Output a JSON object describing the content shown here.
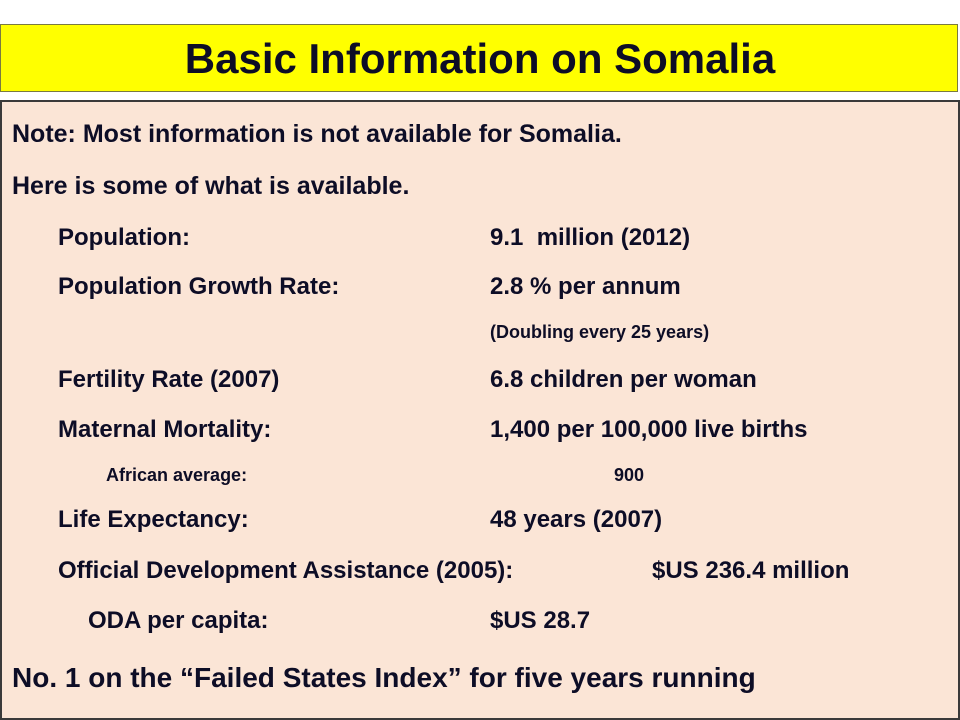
{
  "header": {
    "title": "Basic Information on Somalia"
  },
  "lines": [
    "Note: Most information is not available for Somalia.",
    "Here is some of what is available."
  ],
  "rows": [
    {
      "label": "Population:",
      "value": "9.1  million (2012)"
    },
    {
      "label": "Population Growth Rate:",
      "value": "2.8 % per annum"
    },
    {
      "value": "(Doubling every 25 years)"
    },
    {
      "label": "Fertility Rate (2007)",
      "value": "6.8 children per woman"
    },
    {
      "label": "Maternal Mortality:",
      "value": "1,400 per 100,000 live births"
    },
    {
      "label": "African average:",
      "value": "900"
    },
    {
      "label": "Life Expectancy:",
      "value": "48 years (2007)"
    },
    {
      "label": "Official Development Assistance (2005):",
      "value": "$US 236.4 million"
    },
    {
      "label": "ODA per capita:",
      "value": "$US 28.7"
    }
  ],
  "footer": "No. 1 on the “Failed States Index” for five years running"
}
